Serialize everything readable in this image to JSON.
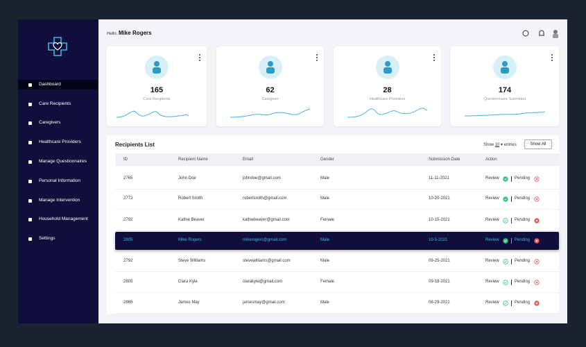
{
  "sidebar": {
    "menu": [
      "Dashboard",
      "Care Recipients",
      "Caregivers",
      "Healthcare Providers",
      "Manage Questionnaires",
      "Personal Information",
      "Manage Intervention",
      "Household Management",
      "Settings"
    ]
  },
  "header": {
    "greeting": "Hello,",
    "user": "Mike Rogers"
  },
  "cards": [
    {
      "value": 165,
      "label": "Care Recipients"
    },
    {
      "value": 62,
      "label": "Caregiver"
    },
    {
      "value": 28,
      "label": "Healthcare Providers"
    },
    {
      "value": 174,
      "label": "Questionnaire Submitted"
    }
  ],
  "table": {
    "title": "Recipients List",
    "show": "Show",
    "page_size": "10",
    "entries": "entries",
    "show_all": "Show All",
    "columns": [
      "ID",
      "Recipient Name",
      "Email",
      "Gender",
      "Submission Date",
      "Action"
    ],
    "rows": [
      [
        "2765",
        "John Doe",
        "johndoe@gmail.com",
        "Male",
        "11-11-2021"
      ],
      [
        "2772",
        "Robert Smith",
        "robertsmith@gmail.com",
        "Male",
        "10-20-2021"
      ],
      [
        "2792",
        "Kathie Beaver",
        "kathiebeaver@gmail.com",
        "Female",
        "10-15-2021"
      ],
      [
        "2805",
        "Mike Rogers",
        "mikerogers@gmail.com",
        "Male",
        "10-5-2021"
      ],
      [
        "2792",
        "Steve Williams",
        "stevewilliams@gmail.com",
        "Male",
        "09-25-2021"
      ],
      [
        "2805",
        "Clara Kyle",
        "clarakyle@gmail.com",
        "Female",
        "09-18-2021"
      ],
      [
        "2865",
        "James May",
        "jamesmay@gmail.com",
        "Male",
        "08-29-2021"
      ]
    ],
    "actions": {
      "review": "Review",
      "pending": "Pending"
    }
  }
}
